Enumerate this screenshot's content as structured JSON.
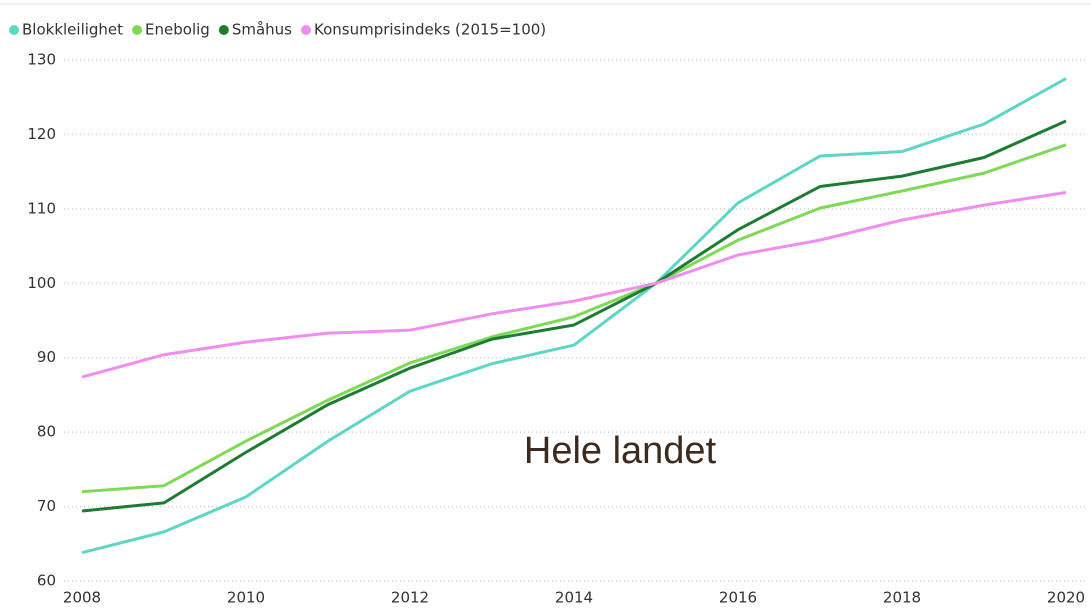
{
  "chart_data": {
    "type": "line",
    "annotation": "Hele landet",
    "x": [
      2008,
      2009,
      2010,
      2011,
      2012,
      2013,
      2014,
      2015,
      2016,
      2017,
      2018,
      2019,
      2020
    ],
    "series": [
      {
        "name": "Blokkleilighet",
        "color": "#5ed6c4",
        "values": [
          63.8,
          66.6,
          71.3,
          78.8,
          85.5,
          89.2,
          91.7,
          100,
          110.8,
          117.1,
          117.7,
          121.4,
          127.5
        ]
      },
      {
        "name": "Enebolig",
        "color": "#7ed957",
        "values": [
          72.0,
          72.8,
          78.8,
          84.3,
          89.3,
          92.8,
          95.5,
          100,
          105.8,
          110.1,
          112.4,
          114.8,
          118.6
        ]
      },
      {
        "name": "Småhus",
        "color": "#1e7b32",
        "values": [
          69.4,
          70.5,
          77.3,
          83.7,
          88.6,
          92.5,
          94.4,
          100,
          107.2,
          113.0,
          114.4,
          116.9,
          121.8
        ]
      },
      {
        "name": "Konsumprisindeks (2015=100)",
        "color": "#f08ef0",
        "values": [
          87.4,
          90.4,
          92.1,
          93.3,
          93.7,
          95.9,
          97.6,
          100,
          103.8,
          105.8,
          108.5,
          110.5,
          112.2
        ]
      }
    ],
    "xlim": [
      2008,
      2020
    ],
    "xticks": [
      2008,
      2010,
      2012,
      2014,
      2016,
      2018,
      2020
    ],
    "ylim": [
      60,
      130
    ],
    "yticks": [
      60,
      70,
      80,
      90,
      100,
      110,
      120,
      130
    ],
    "grid": true,
    "legend": "top"
  }
}
